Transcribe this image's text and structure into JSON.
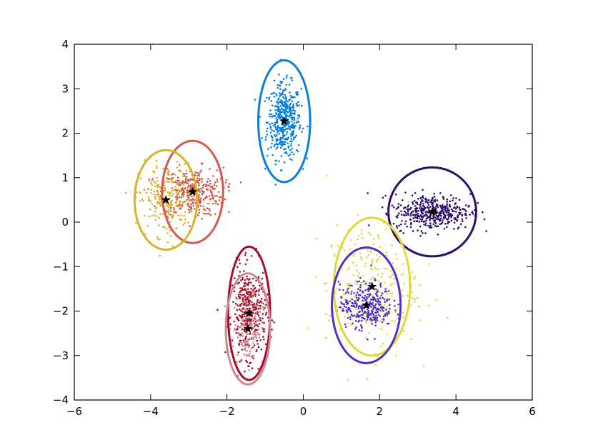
{
  "chart_data": {
    "type": "scatter",
    "title": "",
    "xlabel": "",
    "ylabel": "",
    "xlim": [
      -6,
      6
    ],
    "ylim": [
      -4,
      4
    ],
    "grid": false,
    "legend": "none",
    "x_ticks": [
      -6,
      -4,
      -2,
      0,
      2,
      4,
      6
    ],
    "y_ticks": [
      -4,
      -3,
      -2,
      -1,
      0,
      1,
      2,
      3,
      4
    ],
    "x_tick_labels": [
      "−6",
      "−4",
      "−2",
      "0",
      "2",
      "4",
      "6"
    ],
    "y_tick_labels": [
      "−4",
      "−3",
      "−2",
      "−1",
      "0",
      "1",
      "2",
      "3",
      "4"
    ],
    "clusters": [
      {
        "color": "#0a7fe0",
        "center": [
          -0.5,
          2.27
        ],
        "spread": [
          0.22,
          0.42
        ],
        "points": 450,
        "ellipse": {
          "rx": 0.68,
          "ry": 1.37
        }
      },
      {
        "color": "#d35a4e",
        "center": [
          -2.9,
          0.68
        ],
        "spread": [
          0.4,
          0.27
        ],
        "points": 350,
        "ellipse": {
          "rx": 0.8,
          "ry": 1.15
        }
      },
      {
        "color": "#d7b42c",
        "center": [
          -3.6,
          0.5
        ],
        "spread": [
          0.35,
          0.4
        ],
        "points": 220,
        "ellipse": {
          "rx": 0.82,
          "ry": 1.12
        }
      },
      {
        "color": "#a50e26",
        "center": [
          -1.42,
          -2.05
        ],
        "spread": [
          0.22,
          0.5
        ],
        "points": 380,
        "ellipse": {
          "rx": 0.55,
          "ry": 1.5
        }
      },
      {
        "color": "#c98b96",
        "center": [
          -1.45,
          -2.4
        ],
        "spread": [
          0.2,
          0.4
        ],
        "points": 150,
        "ellipse": {
          "rx": 0.58,
          "ry": 1.25
        }
      },
      {
        "color": "#2d0f6a",
        "center": [
          3.38,
          0.23
        ],
        "spread": [
          0.5,
          0.2
        ],
        "points": 420,
        "ellipse": {
          "rx": 1.15,
          "ry": 1.0
        }
      },
      {
        "color": "#e1d83a",
        "center": [
          1.8,
          -1.45
        ],
        "spread": [
          0.6,
          0.7
        ],
        "points": 260,
        "ellipse": {
          "rx": 1.0,
          "ry": 1.55
        }
      },
      {
        "color": "#5230c4",
        "center": [
          1.65,
          -1.87
        ],
        "spread": [
          0.35,
          0.25
        ],
        "points": 330,
        "ellipse": {
          "rx": 0.9,
          "ry": 1.3
        }
      }
    ],
    "centroids": [
      [
        -0.5,
        2.27
      ],
      [
        -2.9,
        0.68
      ],
      [
        -3.6,
        0.5
      ],
      [
        -1.42,
        -2.05
      ],
      [
        -1.45,
        -2.4
      ],
      [
        3.38,
        0.23
      ],
      [
        1.8,
        -1.45
      ],
      [
        1.65,
        -1.87
      ]
    ],
    "marker": "black-star"
  }
}
